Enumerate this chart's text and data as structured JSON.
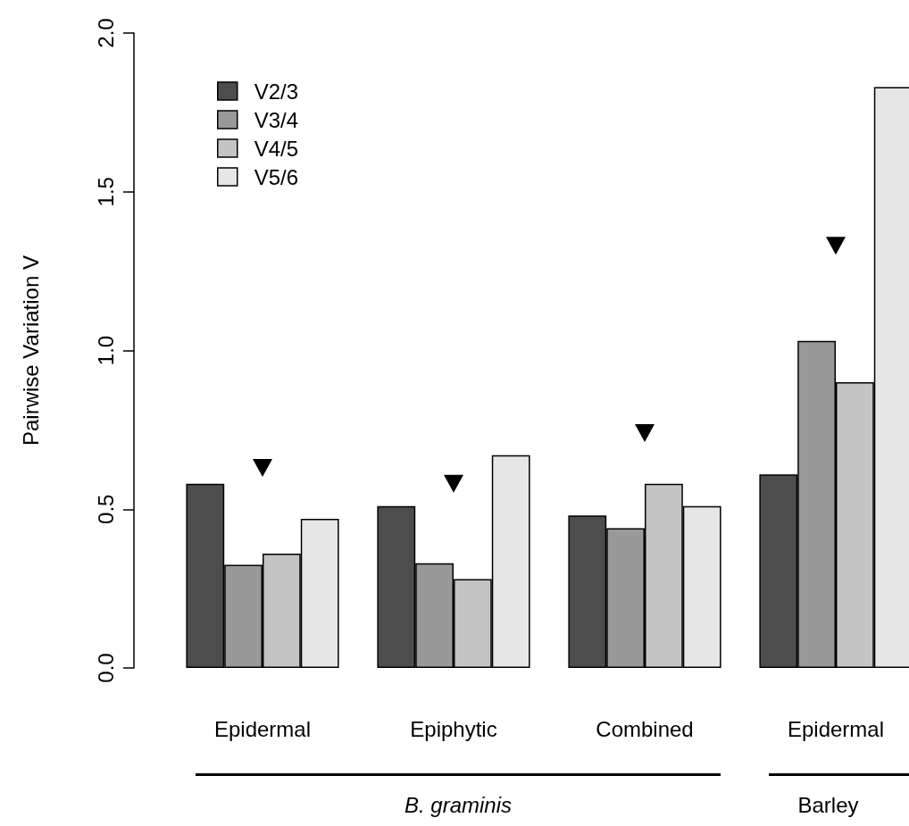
{
  "chart_data": {
    "type": "bar",
    "ylabel": "Pairwise Variation V",
    "categories": [
      "Epidermal",
      "Epiphytic",
      "Combined",
      "Epidermal"
    ],
    "series": [
      {
        "name": "V2/3",
        "color": "#4d4d4d",
        "values": [
          0.58,
          0.51,
          0.48,
          0.61
        ]
      },
      {
        "name": "V3/4",
        "color": "#999999",
        "values": [
          0.325,
          0.33,
          0.44,
          1.03
        ]
      },
      {
        "name": "V4/5",
        "color": "#c4c4c4",
        "values": [
          0.36,
          0.28,
          0.58,
          0.9
        ]
      },
      {
        "name": "V5/6",
        "color": "#e6e6e6",
        "values": [
          0.47,
          0.67,
          0.51,
          1.83
        ]
      },
      {
        "type": "scatter",
        "color": "#000000",
        "marker": "triangle",
        "values": [
          0.63,
          0.58,
          0.74,
          1.33
        ]
      }
    ],
    "ylim": [
      0,
      2
    ],
    "yticks": [
      {
        "value": 0,
        "label": "0.0"
      },
      {
        "value": 0.5,
        "label": "0.5"
      },
      {
        "value": 1,
        "label": "1.0"
      },
      {
        "value": 1.5,
        "label": "1.5"
      },
      {
        "value": 2,
        "label": "2.0"
      }
    ],
    "annotations": [
      "B. graminis",
      "Barley"
    ],
    "legend": "top left",
    "grid": false
  }
}
